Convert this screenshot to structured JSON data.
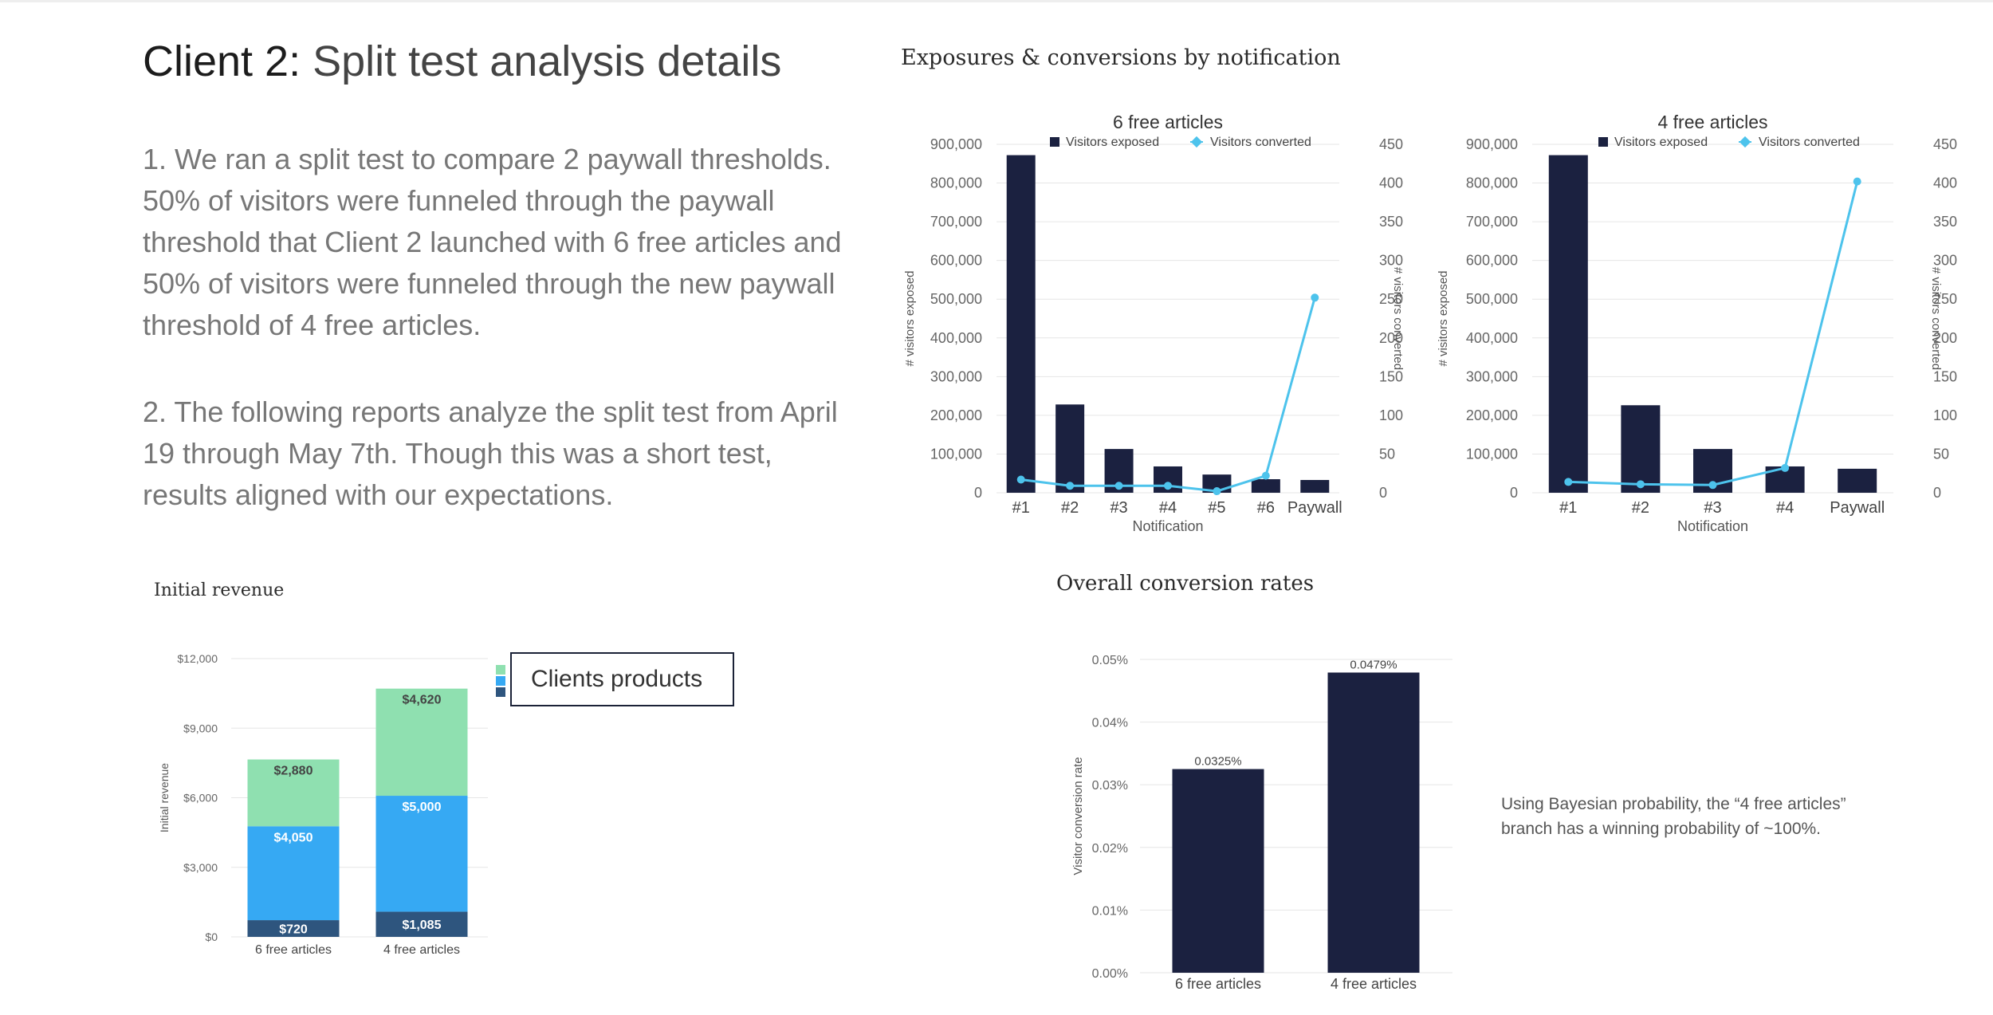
{
  "page": {
    "title_bold": "Client 2:",
    "title_rest": " Split test analysis details",
    "paragraph1": "1. We ran a split test to compare 2 paywall thresholds. 50% of visitors were funneled through the paywall threshold that Client 2 launched with 6 free articles and 50% of visitors were funneled through the new paywall threshold of 4 free articles.",
    "paragraph2": "2. The following reports analyze the split test from April 19 through May 7th. Though this was a short test, results aligned with our expectations.",
    "exposures_heading": "Exposures & conversions by notification",
    "revenue_heading": "Initial revenue",
    "conversion_heading": "Overall conversion rates",
    "legend_box_label": "Clients products",
    "bayes_note": "Using Bayesian probability, the “4 free articles” branch has a winning probability of ~100%.",
    "colors": {
      "navy": "#1b2140",
      "line": "#4dc3ec",
      "light_blue": "#36a9f3",
      "mint": "#8fe0b0",
      "dark_steel": "#2e557e"
    }
  },
  "chart_data": [
    {
      "type": "bar",
      "title": "6 free articles",
      "xlabel": "Notification",
      "ylabel": "# visitors exposed",
      "y2label": "# visitors converted",
      "categories": [
        "#1",
        "#2",
        "#3",
        "#4",
        "#5",
        "#6",
        "Paywall"
      ],
      "ylim": [
        0,
        900000
      ],
      "y_ticks": [
        "0",
        "100,000",
        "200,000",
        "300,000",
        "400,000",
        "500,000",
        "600,000",
        "700,000",
        "800,000",
        "900,000"
      ],
      "y2lim": [
        0,
        450
      ],
      "y2_ticks": [
        "0",
        "50",
        "100",
        "150",
        "200",
        "250",
        "300",
        "350",
        "400",
        "450"
      ],
      "legend": [
        "Visitors exposed",
        "Visitors converted"
      ],
      "legend_position": "top",
      "series": [
        {
          "name": "Visitors exposed",
          "kind": "bar",
          "axis": "left",
          "values": [
            872000,
            228000,
            113000,
            68000,
            47000,
            35000,
            33000
          ]
        },
        {
          "name": "Visitors converted",
          "kind": "line",
          "axis": "right",
          "values": [
            17,
            9,
            9,
            9,
            2,
            22,
            252
          ]
        }
      ]
    },
    {
      "type": "bar",
      "title": "4 free articles",
      "xlabel": "Notification",
      "ylabel": "# visitors exposed",
      "y2label": "# visitors converted",
      "categories": [
        "#1",
        "#2",
        "#3",
        "#4",
        "Paywall"
      ],
      "ylim": [
        0,
        900000
      ],
      "y_ticks": [
        "0",
        "100,000",
        "200,000",
        "300,000",
        "400,000",
        "500,000",
        "600,000",
        "700,000",
        "800,000",
        "900,000"
      ],
      "y2lim": [
        0,
        450
      ],
      "y2_ticks": [
        "0",
        "50",
        "100",
        "150",
        "200",
        "250",
        "300",
        "350",
        "400",
        "450"
      ],
      "legend": [
        "Visitors exposed",
        "Visitors converted"
      ],
      "legend_position": "top",
      "series": [
        {
          "name": "Visitors exposed",
          "kind": "bar",
          "axis": "left",
          "values": [
            872000,
            226000,
            113000,
            68000,
            62000
          ]
        },
        {
          "name": "Visitors converted",
          "kind": "line",
          "axis": "right",
          "values": [
            14,
            11,
            10,
            32,
            402
          ]
        }
      ]
    },
    {
      "type": "bar",
      "stacked": true,
      "ylabel": "Initial revenue",
      "categories": [
        "6 free articles",
        "4 free articles"
      ],
      "ylim": [
        0,
        12000
      ],
      "y_ticks": [
        "$0",
        "$3,000",
        "$6,000",
        "$9,000",
        "$12,000"
      ],
      "series": [
        {
          "values": [
            720,
            1085
          ],
          "labels": [
            "$720",
            "$1,085"
          ]
        },
        {
          "values": [
            4050,
            5000
          ],
          "labels": [
            "$4,050",
            "$5,000"
          ]
        },
        {
          "values": [
            2880,
            4620
          ],
          "labels": [
            "$2,880",
            "$4,620"
          ]
        }
      ]
    },
    {
      "type": "bar",
      "ylabel": "Visitor conversion rate",
      "categories": [
        "6 free articles",
        "4 free articles"
      ],
      "values": [
        0.0325,
        0.0479
      ],
      "value_labels": [
        "0.0325%",
        "0.0479%"
      ],
      "ylim": [
        0,
        0.05
      ],
      "y_ticks": [
        "0.00%",
        "0.01%",
        "0.02%",
        "0.03%",
        "0.04%",
        "0.05%"
      ]
    }
  ]
}
